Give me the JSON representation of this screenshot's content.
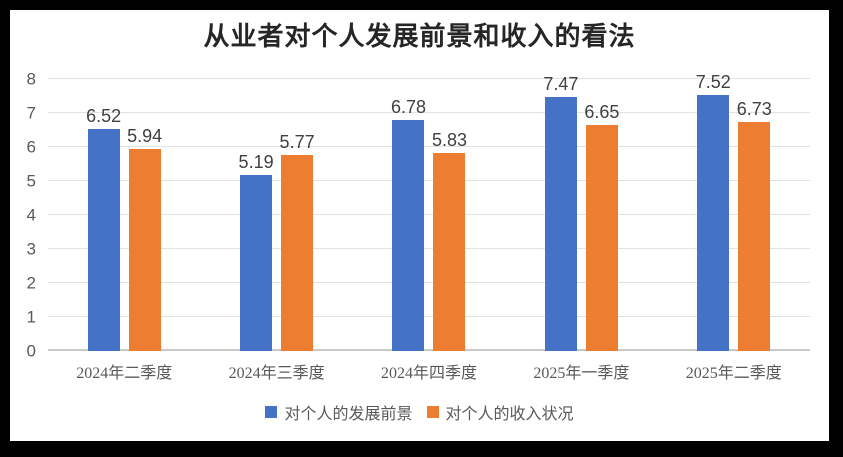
{
  "chart_data": {
    "type": "bar",
    "title": "从业者对个人发展前景和收入的看法",
    "categories": [
      "2024年二季度",
      "2024年三季度",
      "2024年四季度",
      "2025年一季度",
      "2025年二季度"
    ],
    "series": [
      {
        "name": "对个人的发展前景",
        "color": "#4472C4",
        "values": [
          6.52,
          5.19,
          6.78,
          7.47,
          7.52
        ]
      },
      {
        "name": "对个人的收入状况",
        "color": "#ED7D31",
        "values": [
          5.94,
          5.77,
          5.83,
          6.65,
          6.73
        ]
      }
    ],
    "xlabel": "",
    "ylabel": "",
    "ylim": [
      0,
      8
    ],
    "ytick_step": 1,
    "grid": true,
    "legend_position": "bottom",
    "data_labels": true
  }
}
